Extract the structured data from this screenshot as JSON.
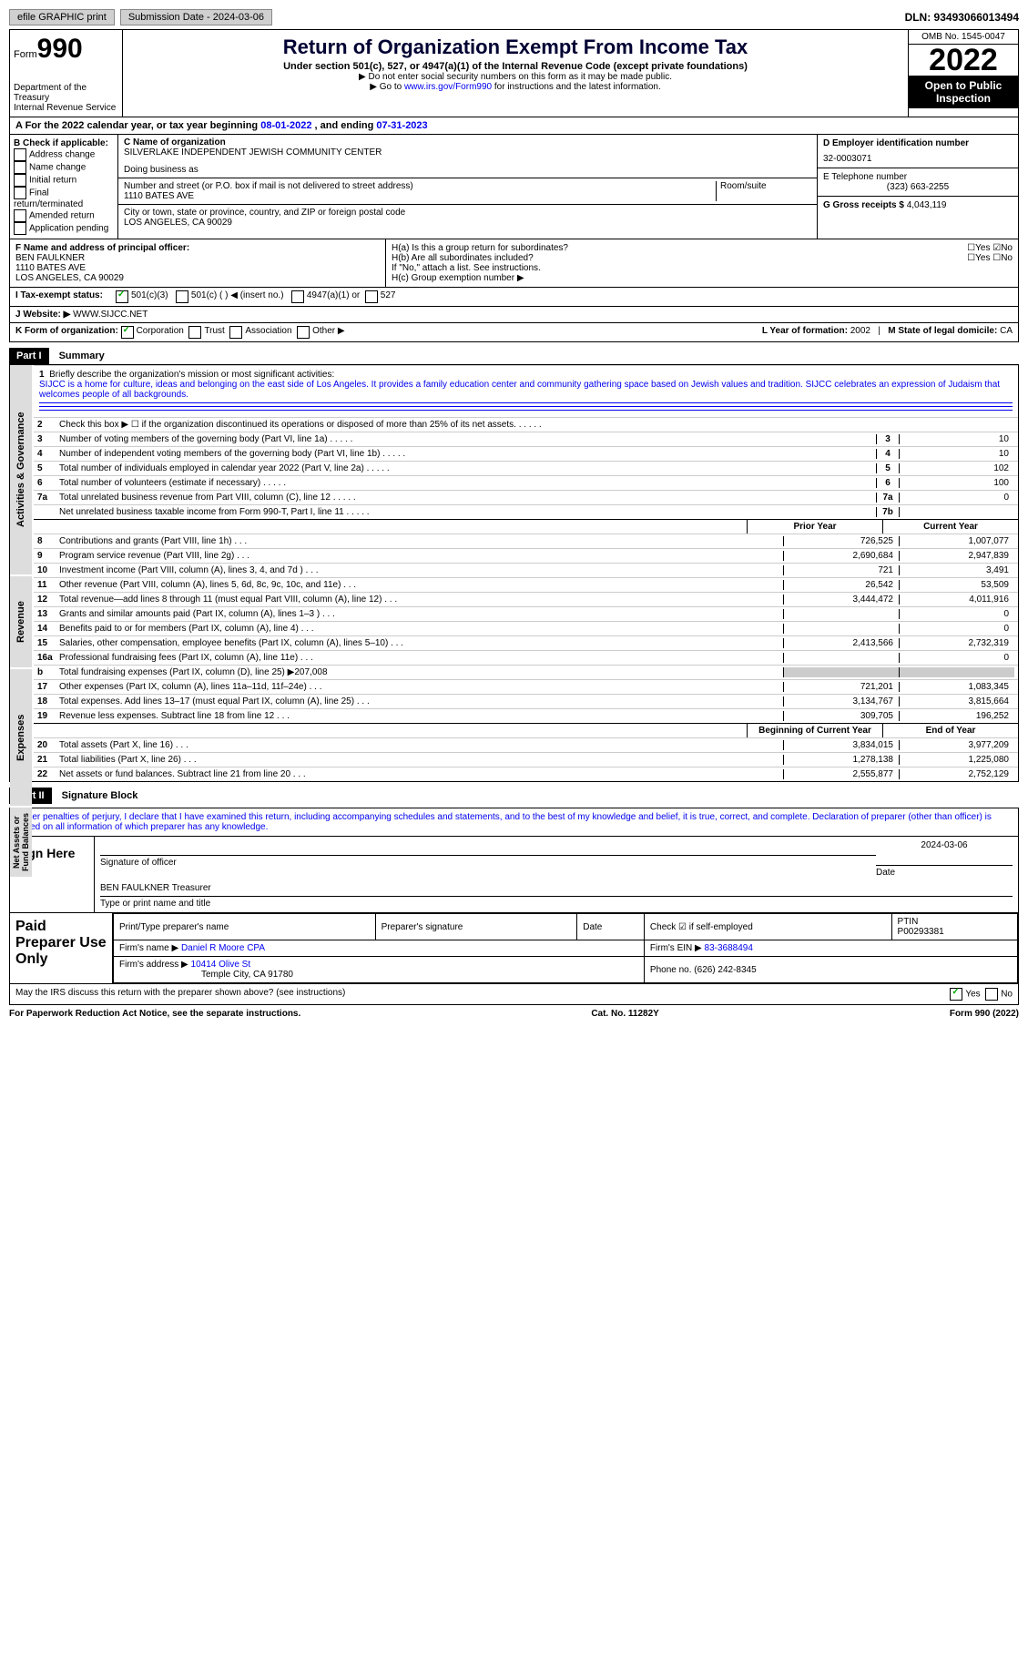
{
  "topbar": {
    "efile": "efile GRAPHIC print",
    "submission": "Submission Date - 2024-03-06",
    "dln": "DLN: 93493066013494"
  },
  "header": {
    "form_label": "Form",
    "form_num": "990",
    "dept": "Department of the Treasury",
    "irs": "Internal Revenue Service",
    "title": "Return of Organization Exempt From Income Tax",
    "sub": "Under section 501(c), 527, or 4947(a)(1) of the Internal Revenue Code (except private foundations)",
    "note1": "▶ Do not enter social security numbers on this form as it may be made public.",
    "note2": "▶ Go to www.irs.gov/Form990 for instructions and the latest information.",
    "omb": "OMB No. 1545-0047",
    "year": "2022",
    "badge": "Open to Public Inspection",
    "link": "www.irs.gov/Form990"
  },
  "taxyear": {
    "prefix": "A For the 2022 calendar year, or tax year beginning",
    "begin": "08-01-2022",
    "mid": ", and ending",
    "end": "07-31-2023"
  },
  "checkb": {
    "label": "B Check if applicable:",
    "items": [
      "Address change",
      "Name change",
      "Initial return",
      "Final return/terminated",
      "Amended return",
      "Application pending"
    ]
  },
  "org": {
    "c_label": "C Name of organization",
    "name": "SILVERLAKE INDEPENDENT JEWISH COMMUNITY CENTER",
    "dba": "Doing business as",
    "addr_label": "Number and street (or P.O. box if mail is not delivered to street address)",
    "addr": "1110 BATES AVE",
    "room": "Room/suite",
    "city_label": "City or town, state or province, country, and ZIP or foreign postal code",
    "city": "LOS ANGELES, CA  90029"
  },
  "ein": {
    "label": "D Employer identification number",
    "value": "32-0003071"
  },
  "tel": {
    "label": "E Telephone number",
    "value": "(323) 663-2255"
  },
  "gross": {
    "label": "G Gross receipts $",
    "value": "4,043,119"
  },
  "officer": {
    "label": "F Name and address of principal officer:",
    "name": "BEN FAULKNER",
    "addr": "1110 BATES AVE",
    "city": "LOS ANGELES, CA  90029"
  },
  "h": {
    "a": "H(a)  Is this a group return for subordinates?",
    "b": "H(b)  Are all subordinates included?",
    "note": "If \"No,\" attach a list. See instructions.",
    "c": "H(c)  Group exemption number ▶",
    "yes": "Yes",
    "no": "No"
  },
  "i": {
    "label": "I  Tax-exempt status:",
    "opts": [
      "501(c)(3)",
      "501(c) (  ) ◀ (insert no.)",
      "4947(a)(1) or",
      "527"
    ]
  },
  "j": {
    "label": "J  Website: ▶",
    "value": "WWW.SIJCC.NET"
  },
  "k": {
    "label": "K Form of organization:",
    "opts": [
      "Corporation",
      "Trust",
      "Association",
      "Other ▶"
    ],
    "l": "L Year of formation:",
    "lval": "2002",
    "m": "M State of legal domicile:",
    "mval": "CA"
  },
  "part1": {
    "label": "Part I",
    "title": "Summary"
  },
  "tabs": {
    "gov": "Activities & Governance",
    "rev": "Revenue",
    "exp": "Expenses",
    "net": "Net Assets or Fund Balances"
  },
  "mission": {
    "num": "1",
    "label": "Briefly describe the organization's mission or most significant activities:",
    "text": "SIJCC is a home for culture, ideas and belonging on the east side of Los Angeles. It provides a family education center and community gathering space based on Jewish values and tradition. SIJCC celebrates an expression of Judaism that welcomes people of all backgrounds."
  },
  "lines_gov": [
    {
      "num": "2",
      "desc": "Check this box ▶ ☐ if the organization discontinued its operations or disposed of more than 25% of its net assets."
    },
    {
      "num": "3",
      "desc": "Number of voting members of the governing body (Part VI, line 1a)",
      "box": "3",
      "val": "10"
    },
    {
      "num": "4",
      "desc": "Number of independent voting members of the governing body (Part VI, line 1b)",
      "box": "4",
      "val": "10"
    },
    {
      "num": "5",
      "desc": "Total number of individuals employed in calendar year 2022 (Part V, line 2a)",
      "box": "5",
      "val": "102"
    },
    {
      "num": "6",
      "desc": "Total number of volunteers (estimate if necessary)",
      "box": "6",
      "val": "100"
    },
    {
      "num": "7a",
      "desc": "Total unrelated business revenue from Part VIII, column (C), line 12",
      "box": "7a",
      "val": "0"
    },
    {
      "num": "",
      "desc": "Net unrelated business taxable income from Form 990-T, Part I, line 11",
      "box": "7b",
      "val": ""
    }
  ],
  "cols": {
    "prior": "Prior Year",
    "current": "Current Year",
    "boy": "Beginning of Current Year",
    "eoy": "End of Year"
  },
  "lines_rev": [
    {
      "num": "8",
      "desc": "Contributions and grants (Part VIII, line 1h)",
      "p": "726,525",
      "c": "1,007,077"
    },
    {
      "num": "9",
      "desc": "Program service revenue (Part VIII, line 2g)",
      "p": "2,690,684",
      "c": "2,947,839"
    },
    {
      "num": "10",
      "desc": "Investment income (Part VIII, column (A), lines 3, 4, and 7d )",
      "p": "721",
      "c": "3,491"
    },
    {
      "num": "11",
      "desc": "Other revenue (Part VIII, column (A), lines 5, 6d, 8c, 9c, 10c, and 11e)",
      "p": "26,542",
      "c": "53,509"
    },
    {
      "num": "12",
      "desc": "Total revenue—add lines 8 through 11 (must equal Part VIII, column (A), line 12)",
      "p": "3,444,472",
      "c": "4,011,916"
    }
  ],
  "lines_exp": [
    {
      "num": "13",
      "desc": "Grants and similar amounts paid (Part IX, column (A), lines 1–3 )",
      "p": "",
      "c": "0"
    },
    {
      "num": "14",
      "desc": "Benefits paid to or for members (Part IX, column (A), line 4)",
      "p": "",
      "c": "0"
    },
    {
      "num": "15",
      "desc": "Salaries, other compensation, employee benefits (Part IX, column (A), lines 5–10)",
      "p": "2,413,566",
      "c": "2,732,319"
    },
    {
      "num": "16a",
      "desc": "Professional fundraising fees (Part IX, column (A), line 11e)",
      "p": "",
      "c": "0"
    },
    {
      "num": "b",
      "desc": "Total fundraising expenses (Part IX, column (D), line 25) ▶207,008",
      "shade": true
    },
    {
      "num": "17",
      "desc": "Other expenses (Part IX, column (A), lines 11a–11d, 11f–24e)",
      "p": "721,201",
      "c": "1,083,345"
    },
    {
      "num": "18",
      "desc": "Total expenses. Add lines 13–17 (must equal Part IX, column (A), line 25)",
      "p": "3,134,767",
      "c": "3,815,664"
    },
    {
      "num": "19",
      "desc": "Revenue less expenses. Subtract line 18 from line 12",
      "p": "309,705",
      "c": "196,252"
    }
  ],
  "lines_net": [
    {
      "num": "20",
      "desc": "Total assets (Part X, line 16)",
      "p": "3,834,015",
      "c": "3,977,209"
    },
    {
      "num": "21",
      "desc": "Total liabilities (Part X, line 26)",
      "p": "1,278,138",
      "c": "1,225,080"
    },
    {
      "num": "22",
      "desc": "Net assets or fund balances. Subtract line 21 from line 20",
      "p": "2,555,877",
      "c": "2,752,129"
    }
  ],
  "part2": {
    "label": "Part II",
    "title": "Signature Block"
  },
  "sig": {
    "intro": "Under penalties of perjury, I declare that I have examined this return, including accompanying schedules and statements, and to the best of my knowledge and belief, it is true, correct, and complete. Declaration of preparer (other than officer) is based on all information of which preparer has any knowledge.",
    "sign_here": "Sign Here",
    "sig_officer": "Signature of officer",
    "date": "Date",
    "date_val": "2024-03-06",
    "officer_name": "BEN FAULKNER  Treasurer",
    "type_name": "Type or print name and title"
  },
  "prep": {
    "label": "Paid Preparer Use Only",
    "h1": "Print/Type preparer's name",
    "h2": "Preparer's signature",
    "h3": "Date",
    "h4": "Check ☑ if self-employed",
    "h5": "PTIN",
    "ptin": "P00293381",
    "firm_name_label": "Firm's name    ▶",
    "firm_name": "Daniel R Moore CPA",
    "firm_ein_label": "Firm's EIN ▶",
    "firm_ein": "83-3688494",
    "firm_addr_label": "Firm's address ▶",
    "firm_addr": "10414 Olive St",
    "firm_city": "Temple City, CA  91780",
    "phone_label": "Phone no.",
    "phone": "(626) 242-8345"
  },
  "footer": {
    "q": "May the IRS discuss this return with the preparer shown above? (see instructions)",
    "yes": "Yes",
    "no": "No",
    "pra": "For Paperwork Reduction Act Notice, see the separate instructions.",
    "cat": "Cat. No. 11282Y",
    "form": "Form 990 (2022)"
  }
}
